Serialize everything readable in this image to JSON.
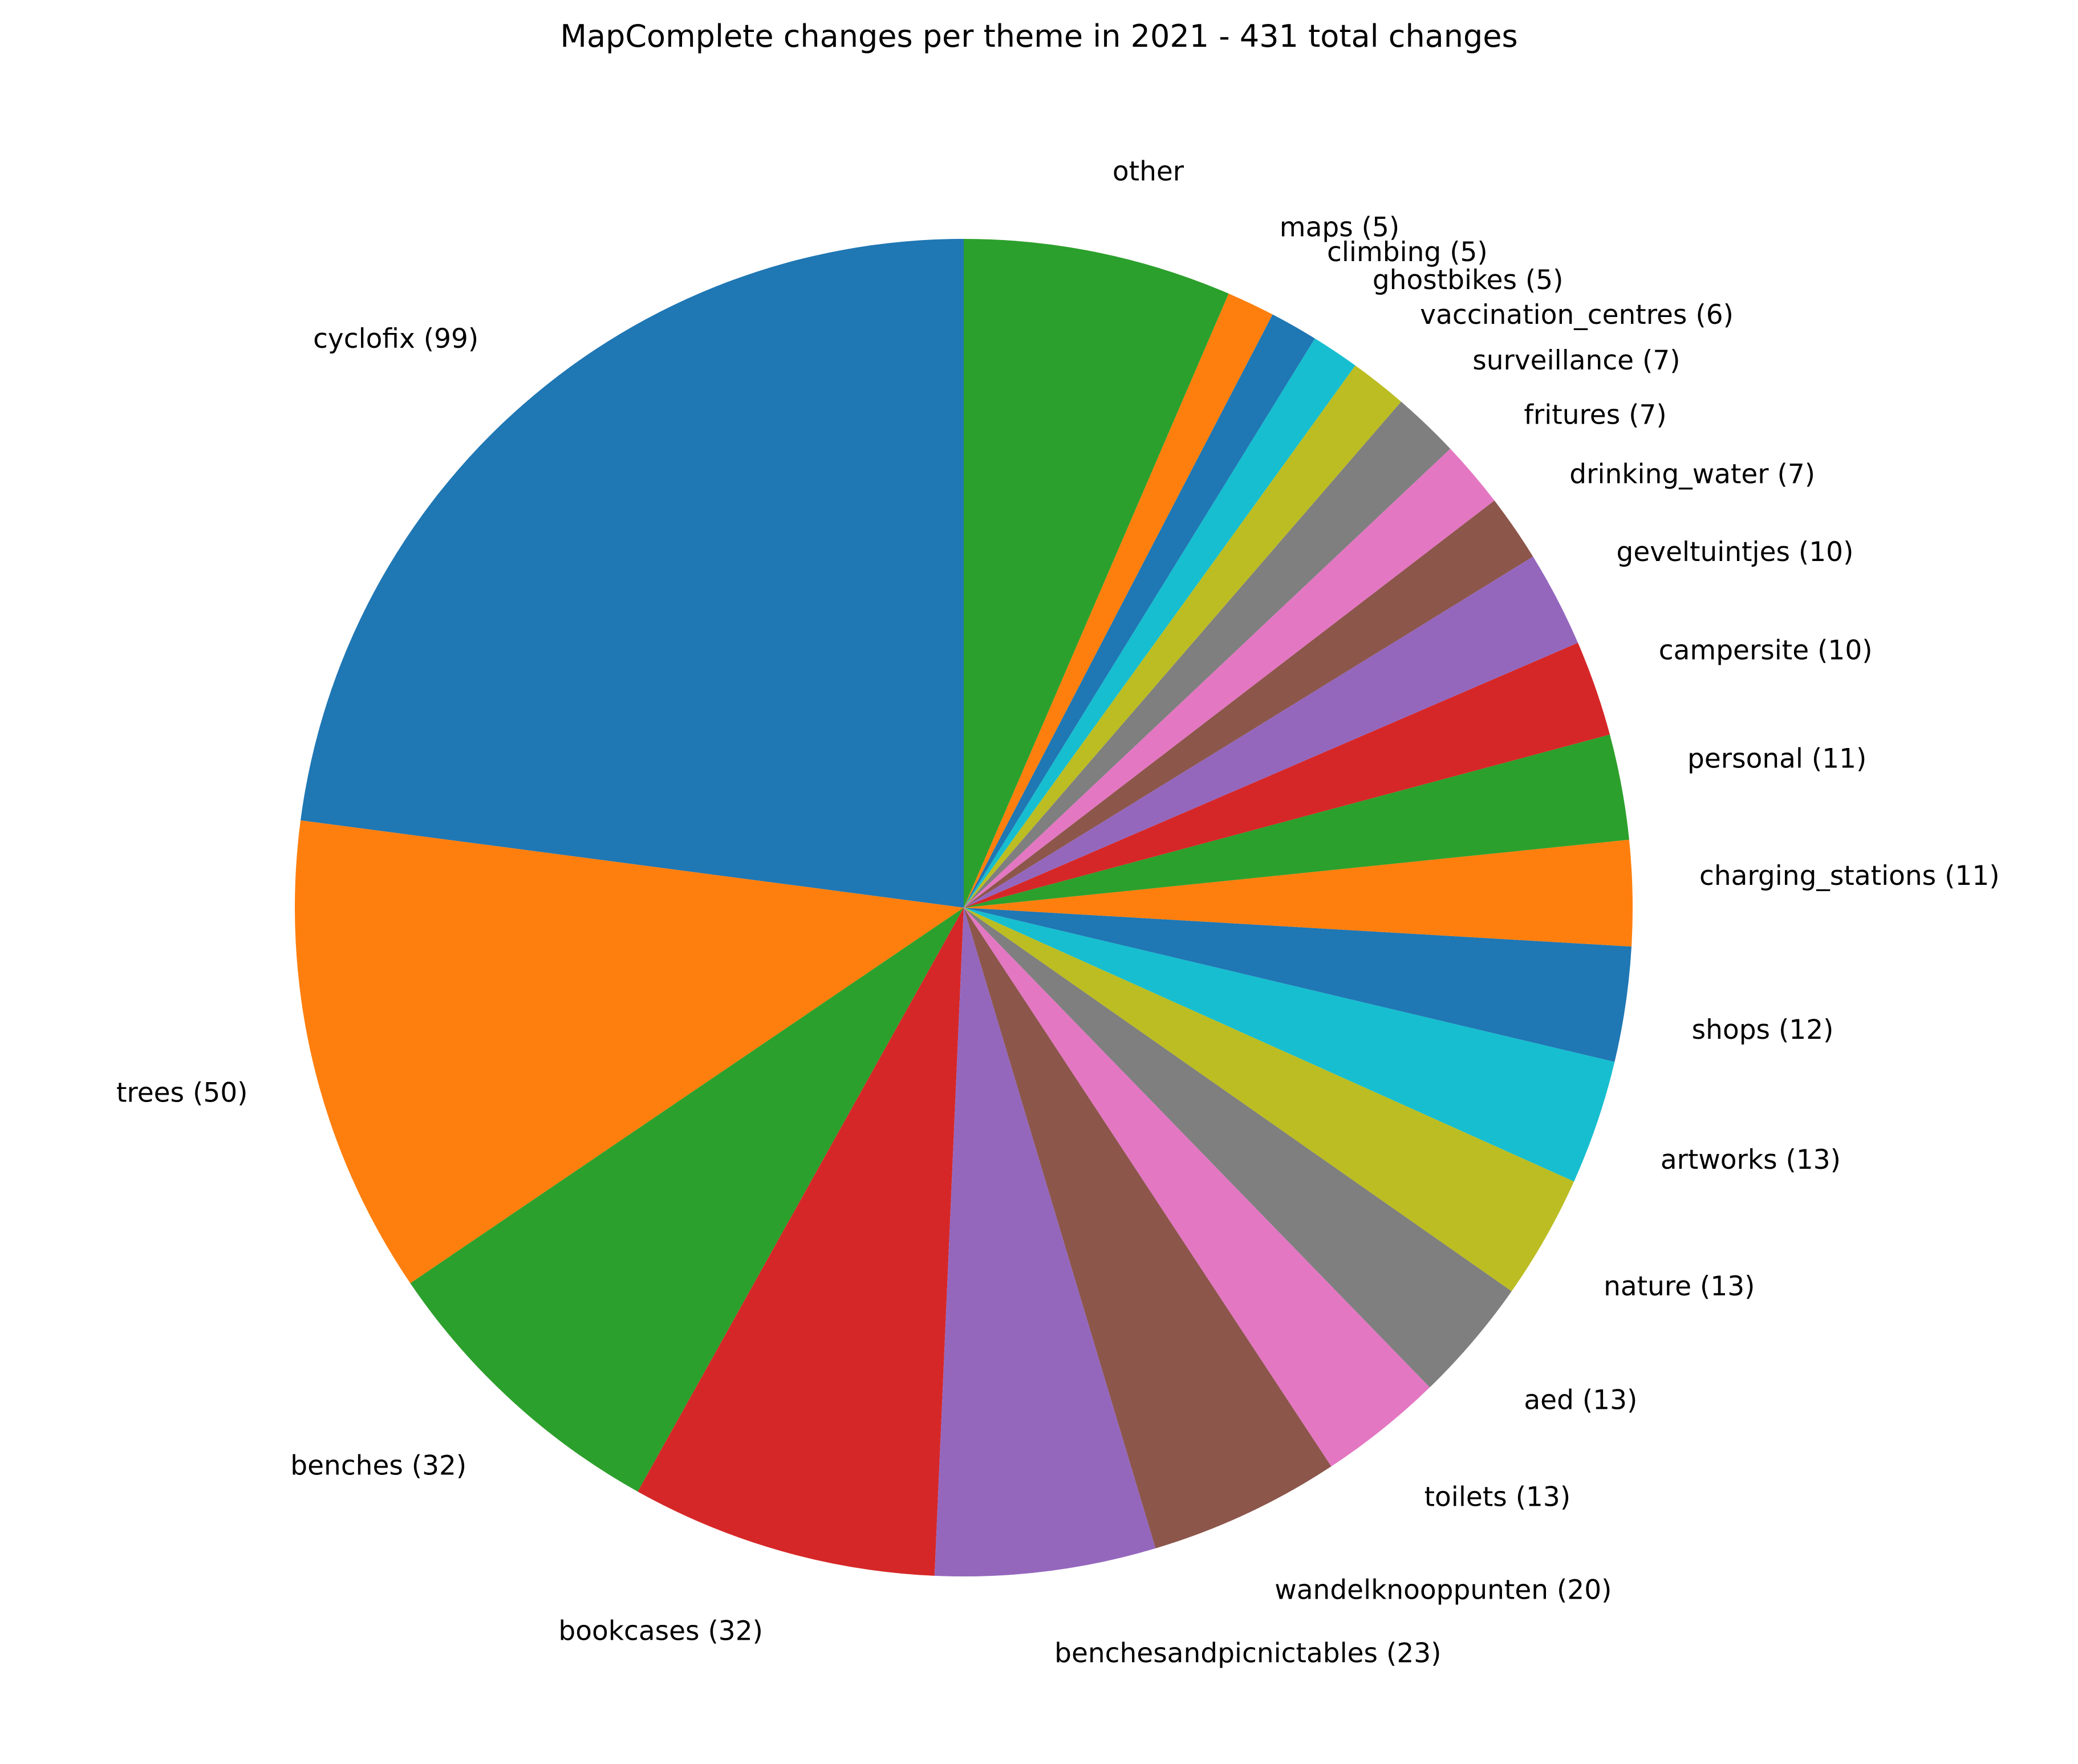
{
  "chart_data": {
    "type": "pie",
    "title": "MapComplete changes per theme in 2021 - 431 total changes",
    "slices": [
      {
        "label": "cyclofix (99)",
        "value": 99,
        "color": "#1f77b4"
      },
      {
        "label": "trees (50)",
        "value": 50,
        "color": "#ff7f0e"
      },
      {
        "label": "benches (32)",
        "value": 32,
        "color": "#2ca02c"
      },
      {
        "label": "bookcases (32)",
        "value": 32,
        "color": "#d62728"
      },
      {
        "label": "benchesandpicnictables (23)",
        "value": 23,
        "color": "#9467bd"
      },
      {
        "label": "wandelknooppunten (20)",
        "value": 20,
        "color": "#8c564b"
      },
      {
        "label": "toilets (13)",
        "value": 13,
        "color": "#e377c2"
      },
      {
        "label": "aed (13)",
        "value": 13,
        "color": "#7f7f7f"
      },
      {
        "label": "nature (13)",
        "value": 13,
        "color": "#bcbd22"
      },
      {
        "label": "artworks (13)",
        "value": 13,
        "color": "#17becf"
      },
      {
        "label": "shops (12)",
        "value": 12,
        "color": "#1f77b4"
      },
      {
        "label": "charging_stations (11)",
        "value": 11,
        "color": "#ff7f0e"
      },
      {
        "label": "personal (11)",
        "value": 11,
        "color": "#2ca02c"
      },
      {
        "label": "campersite (10)",
        "value": 10,
        "color": "#d62728"
      },
      {
        "label": "geveltuintjes (10)",
        "value": 10,
        "color": "#9467bd"
      },
      {
        "label": "drinking_water (7)",
        "value": 7,
        "color": "#8c564b"
      },
      {
        "label": "fritures (7)",
        "value": 7,
        "color": "#e377c2"
      },
      {
        "label": "surveillance (7)",
        "value": 7,
        "color": "#7f7f7f"
      },
      {
        "label": "vaccination_centres (6)",
        "value": 6,
        "color": "#bcbd22"
      },
      {
        "label": "ghostbikes (5)",
        "value": 5,
        "color": "#17becf"
      },
      {
        "label": "climbing (5)",
        "value": 5,
        "color": "#1f77b4"
      },
      {
        "label": "maps (5)",
        "value": 5,
        "color": "#ff7f0e"
      },
      {
        "label": "other",
        "value": 28,
        "color": "#2ca02c"
      }
    ]
  }
}
